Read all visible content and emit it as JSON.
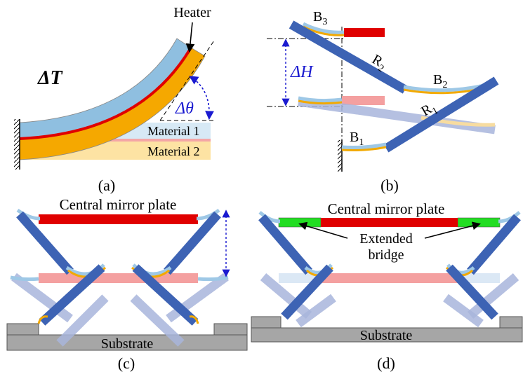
{
  "panel_a": {
    "heater": "Heater",
    "delta_t": "ΔT",
    "delta_theta": "Δθ",
    "material_1": "Material 1",
    "material_2": "Material 2",
    "caption": "(a)"
  },
  "panel_b": {
    "b3": {
      "base": "B",
      "sub": "3"
    },
    "r2": {
      "base": "R",
      "sub": "2"
    },
    "b2": {
      "base": "B",
      "sub": "2"
    },
    "r1": {
      "base": "R",
      "sub": "1"
    },
    "b1": {
      "base": "B",
      "sub": "1"
    },
    "delta_h": "ΔH",
    "caption": "(b)"
  },
  "panel_c": {
    "mirror": "Central mirror plate",
    "substrate": "Substrate",
    "caption": "(c)"
  },
  "panel_d": {
    "mirror": "Central mirror plate",
    "bridge": [
      "Extended",
      "bridge"
    ],
    "substrate": "Substrate",
    "caption": "(d)"
  }
}
